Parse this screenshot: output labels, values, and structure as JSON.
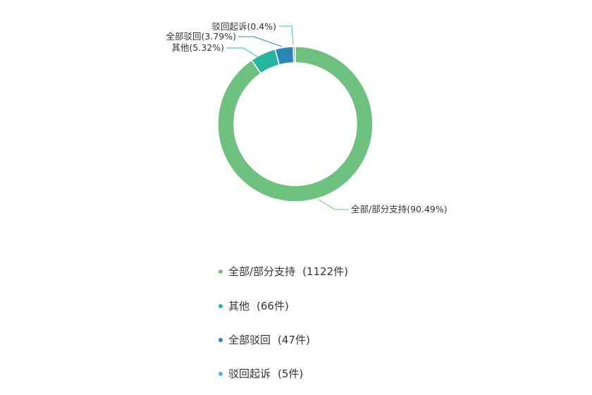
{
  "chart_data": {
    "type": "pie",
    "donut": true,
    "series": [
      {
        "name": "全部/部分支持",
        "value": 1122,
        "percent_label": "90.49%",
        "count_label": "(1122件)",
        "color": "#6fc17f"
      },
      {
        "name": "其他",
        "value": 66,
        "percent_label": "5.32%",
        "count_label": "(66件)",
        "color": "#26b6a0"
      },
      {
        "name": "全部驳回",
        "value": 47,
        "percent_label": "3.79%",
        "count_label": "(47件)",
        "color": "#2c86b3"
      },
      {
        "name": "驳回起诉",
        "value": 5,
        "percent_label": "0.4%",
        "count_label": "(5件)",
        "color": "#4db3e6"
      }
    ],
    "legend_placement": "bottom"
  }
}
